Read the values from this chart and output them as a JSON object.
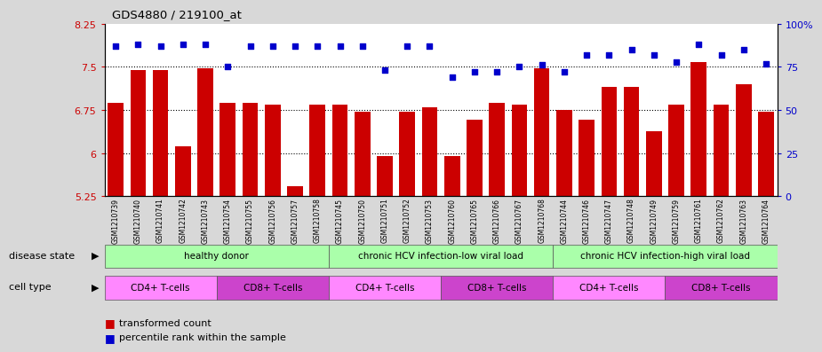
{
  "title": "GDS4880 / 219100_at",
  "samples": [
    "GSM1210739",
    "GSM1210740",
    "GSM1210741",
    "GSM1210742",
    "GSM1210743",
    "GSM1210754",
    "GSM1210755",
    "GSM1210756",
    "GSM1210757",
    "GSM1210758",
    "GSM1210745",
    "GSM1210750",
    "GSM1210751",
    "GSM1210752",
    "GSM1210753",
    "GSM1210760",
    "GSM1210765",
    "GSM1210766",
    "GSM1210767",
    "GSM1210768",
    "GSM1210744",
    "GSM1210746",
    "GSM1210747",
    "GSM1210748",
    "GSM1210749",
    "GSM1210759",
    "GSM1210761",
    "GSM1210762",
    "GSM1210763",
    "GSM1210764"
  ],
  "bar_values": [
    6.88,
    7.45,
    7.45,
    6.12,
    7.47,
    6.88,
    6.88,
    6.85,
    5.42,
    6.85,
    6.85,
    6.72,
    5.95,
    6.72,
    6.8,
    5.95,
    6.58,
    6.88,
    6.85,
    7.47,
    6.75,
    6.58,
    7.15,
    7.15,
    6.38,
    6.85,
    7.58,
    6.85,
    7.2,
    6.72
  ],
  "percentile_values": [
    87,
    88,
    87,
    88,
    88,
    75,
    87,
    87,
    87,
    87,
    87,
    87,
    73,
    87,
    87,
    69,
    72,
    72,
    75,
    76,
    72,
    82,
    82,
    85,
    82,
    78,
    88,
    82,
    85,
    77
  ],
  "bar_color": "#cc0000",
  "dot_color": "#0000cc",
  "ylim_left": [
    5.25,
    8.25
  ],
  "ylim_right": [
    0,
    100
  ],
  "yticks_left": [
    5.25,
    6.0,
    6.75,
    7.5,
    8.25
  ],
  "ytick_labels_left": [
    "5.25",
    "6",
    "6.75",
    "7.5",
    "8.25"
  ],
  "yticks_right": [
    0,
    25,
    50,
    75,
    100
  ],
  "ytick_labels_right": [
    "0",
    "25",
    "50",
    "75",
    "100%"
  ],
  "grid_lines": [
    6.0,
    6.75,
    7.5
  ],
  "disease_groups": [
    {
      "label": "healthy donor",
      "start": 0,
      "end": 9
    },
    {
      "label": "chronic HCV infection-low viral load",
      "start": 10,
      "end": 19
    },
    {
      "label": "chronic HCV infection-high viral load",
      "start": 20,
      "end": 29
    }
  ],
  "cell_type_groups": [
    {
      "label": "CD4+ T-cells",
      "start": 0,
      "end": 4
    },
    {
      "label": "CD8+ T-cells",
      "start": 5,
      "end": 9
    },
    {
      "label": "CD4+ T-cells",
      "start": 10,
      "end": 14
    },
    {
      "label": "CD8+ T-cells",
      "start": 15,
      "end": 19
    },
    {
      "label": "CD4+ T-cells",
      "start": 20,
      "end": 24
    },
    {
      "label": "CD8+ T-cells",
      "start": 25,
      "end": 29
    }
  ],
  "disease_state_label": "disease state",
  "cell_type_label": "cell type",
  "disease_bg": "#aaffaa",
  "disease_bg_dark": "#55cc55",
  "cell_cd4_color": "#ff88ff",
  "cell_cd8_color": "#cc44cc",
  "fig_bg": "#d8d8d8",
  "plot_bg": "#ffffff",
  "xtick_bg": "#cccccc"
}
